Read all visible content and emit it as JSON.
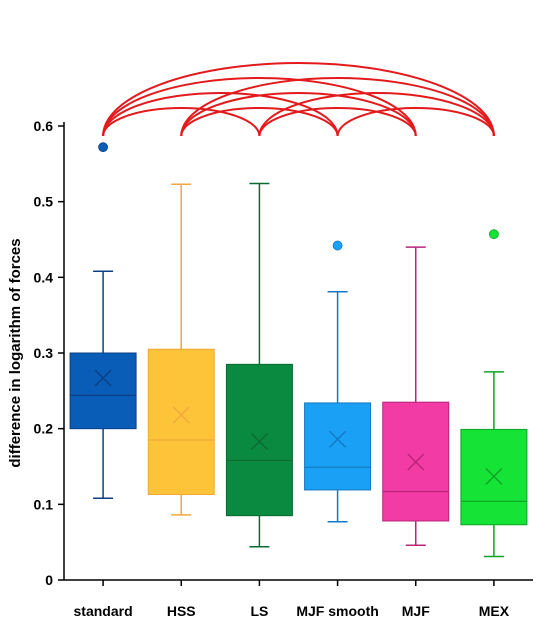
{
  "chart_data": {
    "type": "box",
    "ylabel": "difference in logarithm of forces",
    "ylim": [
      0,
      0.6
    ],
    "yticks": [
      "0",
      "0.1",
      "0.2",
      "0.3",
      "0.4",
      "0.5",
      "0.6"
    ],
    "categories": [
      "standard",
      "HSS",
      "LS",
      "MJF smooth",
      "MJF",
      "MEX"
    ],
    "boxes": [
      {
        "category": "standard",
        "fill": "#0a5db6",
        "line": "#0b3f86",
        "min": 0.108,
        "q1": 0.2,
        "median": 0.244,
        "q3": 0.3,
        "max": 0.408,
        "mean": 0.267,
        "outliers": [
          0.572
        ]
      },
      {
        "category": "HSS",
        "fill": "#fdc43a",
        "line": "#f2a93a",
        "min": 0.086,
        "q1": 0.113,
        "median": 0.185,
        "q3": 0.305,
        "max": 0.523,
        "mean": 0.218,
        "outliers": []
      },
      {
        "category": "LS",
        "fill": "#0a8a40",
        "line": "#0b6a30",
        "min": 0.044,
        "q1": 0.085,
        "median": 0.158,
        "q3": 0.285,
        "max": 0.524,
        "mean": 0.183,
        "outliers": []
      },
      {
        "category": "MJF smooth",
        "fill": "#1aa1f5",
        "line": "#1479c2",
        "min": 0.077,
        "q1": 0.119,
        "median": 0.149,
        "q3": 0.234,
        "max": 0.381,
        "mean": 0.186,
        "outliers": [
          0.442
        ]
      },
      {
        "category": "MJF",
        "fill": "#f33ba6",
        "line": "#b8247a",
        "min": 0.046,
        "q1": 0.078,
        "median": 0.117,
        "q3": 0.235,
        "max": 0.44,
        "mean": 0.156,
        "outliers": []
      },
      {
        "category": "MEX",
        "fill": "#15e335",
        "line": "#0fa327",
        "min": 0.031,
        "q1": 0.073,
        "median": 0.104,
        "q3": 0.199,
        "max": 0.275,
        "mean": 0.137,
        "outliers": [
          0.457
        ]
      }
    ],
    "significance_pairs": [
      [
        0,
        2
      ],
      [
        0,
        3
      ],
      [
        0,
        4
      ],
      [
        0,
        5
      ],
      [
        1,
        3
      ],
      [
        1,
        4
      ],
      [
        1,
        5
      ],
      [
        2,
        4
      ],
      [
        2,
        5
      ],
      [
        3,
        5
      ]
    ],
    "arc_color": "#e31a1c",
    "grid": false
  }
}
